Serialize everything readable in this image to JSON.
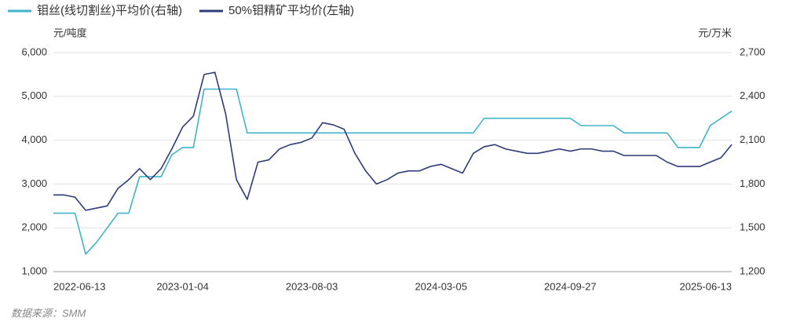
{
  "chart_data": {
    "type": "line",
    "y_unit_label": "元/吨度",
    "y2_unit_label": "元/万米",
    "source": "数据来源：SMM",
    "categories": [
      "2022-06-13",
      null,
      null,
      null,
      null,
      null,
      null,
      null,
      null,
      null,
      null,
      null,
      "2023-01-04",
      null,
      null,
      null,
      null,
      null,
      null,
      null,
      null,
      null,
      null,
      null,
      "2023-08-03",
      null,
      null,
      null,
      null,
      null,
      null,
      null,
      null,
      null,
      null,
      null,
      "2024-03-05",
      null,
      null,
      null,
      null,
      null,
      null,
      null,
      null,
      null,
      null,
      null,
      "2024-09-27",
      null,
      null,
      null,
      null,
      null,
      null,
      null,
      null,
      null,
      null,
      null,
      "2025-06-13",
      null,
      null,
      null
    ],
    "series": [
      {
        "name": "钼丝(线切割丝)平均价(右轴)",
        "color": "#3fb4c8",
        "axis": "y2",
        "values": [
          1600,
          1600,
          1600,
          1320,
          1400,
          1500,
          1600,
          1600,
          1850,
          1850,
          1850,
          2000,
          2050,
          2050,
          2450,
          2450,
          2450,
          2450,
          2150,
          2150,
          2150,
          2150,
          2150,
          2150,
          2150,
          2150,
          2150,
          2150,
          2150,
          2150,
          2150,
          2150,
          2150,
          2150,
          2150,
          2150,
          2150,
          2150,
          2150,
          2150,
          2250,
          2250,
          2250,
          2250,
          2250,
          2250,
          2250,
          2250,
          2250,
          2200,
          2200,
          2200,
          2200,
          2150,
          2150,
          2150,
          2150,
          2150,
          2050,
          2050,
          2050,
          2200,
          2250,
          2300
        ]
      },
      {
        "name": "50%钼精矿平均价(左轴)",
        "color": "#2f3b7a",
        "values": [
          2750,
          2750,
          2700,
          2400,
          2450,
          2500,
          2900,
          3100,
          3350,
          3100,
          3350,
          3800,
          4300,
          4550,
          5500,
          5550,
          4600,
          3100,
          2650,
          3500,
          3550,
          3800,
          3900,
          3950,
          4050,
          4400,
          4350,
          4250,
          3700,
          3300,
          3000,
          3100,
          3250,
          3300,
          3300,
          3400,
          3450,
          3350,
          3250,
          3700,
          3850,
          3900,
          3800,
          3750,
          3700,
          3700,
          3750,
          3800,
          3750,
          3800,
          3800,
          3750,
          3750,
          3650,
          3650,
          3650,
          3650,
          3500,
          3400,
          3400,
          3400,
          3500,
          3600,
          3900
        ]
      }
    ],
    "ylim": [
      1000,
      6000
    ],
    "yticks": [
      {
        "value": 1000,
        "label": "1,000"
      },
      {
        "value": 2000,
        "label": "2,000"
      },
      {
        "value": 3000,
        "label": "3,000"
      },
      {
        "value": 4000,
        "label": "4,000"
      },
      {
        "value": 5000,
        "label": "5,000"
      },
      {
        "value": 6000,
        "label": "6,000"
      }
    ],
    "y2lim": [
      1200,
      2700
    ],
    "y2ticks": [
      {
        "value": 1200,
        "label": "1,200"
      },
      {
        "value": 1500,
        "label": "1,500"
      },
      {
        "value": 1800,
        "label": "1,800"
      },
      {
        "value": 2100,
        "label": "2,100"
      },
      {
        "value": 2400,
        "label": "2,400"
      },
      {
        "value": 2700,
        "label": "2,700"
      }
    ],
    "grid": true,
    "legend": "top"
  }
}
